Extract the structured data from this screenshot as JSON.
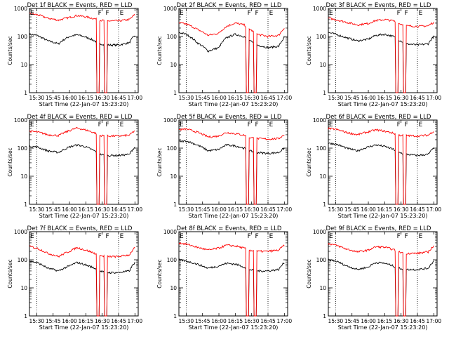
{
  "figure": {
    "ylabel": "Counts/sec",
    "xlabel": "Start Time (22-Jan-07 15:23:20)",
    "colors": {
      "events": "#000000",
      "lld": "#ff0000",
      "frame": "#000000"
    }
  },
  "chart_data": [
    {
      "type": "line",
      "title": "Det 1f BLACK = Events, RED = LLD",
      "xlabel": "Start Time (22-Jan-07 15:23:20)",
      "ylabel": "Counts/sec",
      "xticks": [
        "15:30",
        "15:45",
        "16:00",
        "16:15",
        "16:30",
        "16:45",
        "17:00"
      ],
      "yticks": [
        "1",
        "10",
        "100",
        "1000"
      ],
      "ylim": [
        1,
        1000
      ],
      "yscale": "log",
      "markers": [
        "F",
        "F",
        "E"
      ],
      "series": [
        {
          "key": "events",
          "x": [
            "15:23",
            "15:30",
            "15:40",
            "15:50",
            "16:00",
            "16:07",
            "16:15",
            "16:23",
            "16:28",
            "16:35",
            "16:45",
            "16:55",
            "17:00"
          ],
          "values": [
            120,
            110,
            70,
            55,
            100,
            115,
            95,
            70,
            55,
            50,
            50,
            60,
            110
          ]
        },
        {
          "key": "lld",
          "x": [
            "15:23",
            "15:30",
            "15:40",
            "15:50",
            "16:00",
            "16:07",
            "16:15",
            "16:23",
            "16:28",
            "16:35",
            "16:45",
            "16:55",
            "17:00"
          ],
          "values": [
            650,
            600,
            450,
            380,
            480,
            560,
            500,
            430,
            380,
            360,
            360,
            400,
            600
          ]
        }
      ]
    },
    {
      "type": "line",
      "title": "Det 2f BLACK = Events, RED = LLD",
      "xlabel": "Start Time (22-Jan-07 15:23:20)",
      "ylabel": "Counts/sec",
      "xticks": [
        "15:30",
        "15:45",
        "16:00",
        "16:15",
        "16:30",
        "16:45",
        "17:00"
      ],
      "yticks": [
        "1",
        "10",
        "100",
        "1000"
      ],
      "ylim": [
        1,
        1000
      ],
      "yscale": "log",
      "markers": [
        "F",
        "F",
        "E"
      ],
      "series": [
        {
          "key": "events",
          "x": [
            "15:23",
            "15:30",
            "15:40",
            "15:50",
            "16:00",
            "16:07",
            "16:15",
            "16:23",
            "16:28",
            "16:35",
            "16:45",
            "16:55",
            "17:00"
          ],
          "values": [
            140,
            120,
            60,
            30,
            40,
            90,
            120,
            100,
            70,
            50,
            40,
            45,
            90
          ]
        },
        {
          "key": "lld",
          "x": [
            "15:23",
            "15:30",
            "15:40",
            "15:50",
            "16:00",
            "16:07",
            "16:15",
            "16:23",
            "16:28",
            "16:35",
            "16:45",
            "16:55",
            "17:00"
          ],
          "values": [
            300,
            280,
            180,
            110,
            130,
            230,
            300,
            260,
            180,
            120,
            100,
            110,
            200
          ]
        }
      ]
    },
    {
      "type": "line",
      "title": "Det 3f BLACK = Events, RED = LLD",
      "xlabel": "Start Time (22-Jan-07 15:23:20)",
      "ylabel": "Counts/sec",
      "xticks": [
        "15:30",
        "15:45",
        "16:00",
        "16:15",
        "16:30",
        "16:45",
        "17:00"
      ],
      "yticks": [
        "1",
        "10",
        "100",
        "1000"
      ],
      "ylim": [
        1,
        1000
      ],
      "yscale": "log",
      "markers": [
        "F",
        "F",
        "E"
      ],
      "series": [
        {
          "key": "events",
          "x": [
            "15:23",
            "15:30",
            "15:40",
            "15:50",
            "16:00",
            "16:07",
            "16:15",
            "16:23",
            "16:28",
            "16:35",
            "16:45",
            "16:55",
            "17:00"
          ],
          "values": [
            140,
            120,
            90,
            70,
            80,
            110,
            120,
            100,
            75,
            55,
            50,
            55,
            100
          ]
        },
        {
          "key": "lld",
          "x": [
            "15:23",
            "15:30",
            "15:40",
            "15:50",
            "16:00",
            "16:07",
            "16:15",
            "16:23",
            "16:28",
            "16:35",
            "16:45",
            "16:55",
            "17:00"
          ],
          "values": [
            450,
            400,
            320,
            260,
            290,
            370,
            400,
            360,
            290,
            240,
            230,
            240,
            320
          ]
        }
      ]
    },
    {
      "type": "line",
      "title": "Det 4f BLACK = Events, RED = LLD",
      "xlabel": "Start Time (22-Jan-07 15:23:20)",
      "ylabel": "Counts/sec",
      "xticks": [
        "15:30",
        "15:45",
        "16:00",
        "16:15",
        "16:30",
        "16:45",
        "17:00"
      ],
      "yticks": [
        "1",
        "10",
        "100",
        "1000"
      ],
      "ylim": [
        1,
        1000
      ],
      "yscale": "log",
      "markers": [
        "F",
        "F",
        "E"
      ],
      "series": [
        {
          "key": "events",
          "x": [
            "15:23",
            "15:30",
            "15:40",
            "15:50",
            "16:00",
            "16:07",
            "16:15",
            "16:23",
            "16:28",
            "16:35",
            "16:45",
            "16:55",
            "17:00"
          ],
          "values": [
            120,
            110,
            80,
            70,
            110,
            130,
            110,
            80,
            60,
            55,
            55,
            60,
            110
          ]
        },
        {
          "key": "lld",
          "x": [
            "15:23",
            "15:30",
            "15:40",
            "15:50",
            "16:00",
            "16:07",
            "16:15",
            "16:23",
            "16:28",
            "16:35",
            "16:45",
            "16:55",
            "17:00"
          ],
          "values": [
            400,
            380,
            300,
            280,
            420,
            520,
            440,
            350,
            280,
            270,
            270,
            290,
            420
          ]
        }
      ]
    },
    {
      "type": "line",
      "title": "Det 5f BLACK = Events, RED = LLD",
      "xlabel": "Start Time (22-Jan-07 15:23:20)",
      "ylabel": "Counts/sec",
      "xticks": [
        "15:30",
        "15:45",
        "16:00",
        "16:15",
        "16:30",
        "16:45",
        "17:00"
      ],
      "yticks": [
        "1",
        "10",
        "100",
        "1000"
      ],
      "ylim": [
        1,
        1000
      ],
      "yscale": "log",
      "markers": [
        "F",
        "F",
        "E"
      ],
      "series": [
        {
          "key": "events",
          "x": [
            "15:23",
            "15:30",
            "15:40",
            "15:50",
            "16:00",
            "16:07",
            "16:15",
            "16:23",
            "16:28",
            "16:35",
            "16:45",
            "16:55",
            "17:00"
          ],
          "values": [
            170,
            180,
            130,
            80,
            90,
            130,
            120,
            100,
            80,
            70,
            65,
            70,
            100
          ]
        },
        {
          "key": "lld",
          "x": [
            "15:23",
            "15:30",
            "15:40",
            "15:50",
            "16:00",
            "16:07",
            "16:15",
            "16:23",
            "16:28",
            "16:35",
            "16:45",
            "16:55",
            "17:00"
          ],
          "values": [
            450,
            480,
            370,
            250,
            270,
            360,
            330,
            290,
            240,
            220,
            210,
            220,
            300
          ]
        }
      ]
    },
    {
      "type": "line",
      "title": "Det 6f BLACK = Events, RED = LLD",
      "xlabel": "Start Time (22-Jan-07 15:23:20)",
      "ylabel": "Counts/sec",
      "xticks": [
        "15:30",
        "15:45",
        "16:00",
        "16:15",
        "16:30",
        "16:45",
        "17:00"
      ],
      "yticks": [
        "1",
        "10",
        "100",
        "1000"
      ],
      "ylim": [
        1,
        1000
      ],
      "yscale": "log",
      "markers": [
        "F",
        "F",
        "E"
      ],
      "series": [
        {
          "key": "events",
          "x": [
            "15:23",
            "15:30",
            "15:40",
            "15:50",
            "16:00",
            "16:07",
            "16:15",
            "16:23",
            "16:28",
            "16:35",
            "16:45",
            "16:55",
            "17:00"
          ],
          "values": [
            150,
            140,
            100,
            80,
            110,
            130,
            115,
            90,
            70,
            60,
            55,
            60,
            100
          ]
        },
        {
          "key": "lld",
          "x": [
            "15:23",
            "15:30",
            "15:40",
            "15:50",
            "16:00",
            "16:07",
            "16:15",
            "16:23",
            "16:28",
            "16:35",
            "16:45",
            "16:55",
            "17:00"
          ],
          "values": [
            500,
            470,
            360,
            300,
            380,
            450,
            400,
            340,
            290,
            280,
            270,
            290,
            400
          ]
        }
      ]
    },
    {
      "type": "line",
      "title": "Det 7f BLACK = Events, RED = LLD",
      "xlabel": "Start Time (22-Jan-07 15:23:20)",
      "ylabel": "Counts/sec",
      "xticks": [
        "15:30",
        "15:45",
        "16:00",
        "16:15",
        "16:30",
        "16:45",
        "17:00"
      ],
      "yticks": [
        "1",
        "10",
        "100",
        "1000"
      ],
      "ylim": [
        1,
        1000
      ],
      "yscale": "log",
      "markers": [
        "F",
        "F",
        "E"
      ],
      "series": [
        {
          "key": "events",
          "x": [
            "15:23",
            "15:30",
            "15:40",
            "15:50",
            "16:00",
            "16:07",
            "16:15",
            "16:23",
            "16:28",
            "16:35",
            "16:45",
            "16:55",
            "17:00"
          ],
          "values": [
            90,
            80,
            50,
            40,
            60,
            80,
            65,
            50,
            40,
            35,
            35,
            40,
            80
          ]
        },
        {
          "key": "lld",
          "x": [
            "15:23",
            "15:30",
            "15:40",
            "15:50",
            "16:00",
            "16:07",
            "16:15",
            "16:23",
            "16:28",
            "16:35",
            "16:45",
            "16:55",
            "17:00"
          ],
          "values": [
            300,
            260,
            170,
            130,
            200,
            270,
            220,
            170,
            140,
            130,
            130,
            150,
            270
          ]
        }
      ]
    },
    {
      "type": "line",
      "title": "Det 8f BLACK = Events, RED = LLD",
      "xlabel": "Start Time (22-Jan-07 15:23:20)",
      "ylabel": "Counts/sec",
      "xticks": [
        "15:30",
        "15:45",
        "16:00",
        "16:15",
        "16:30",
        "16:45",
        "17:00"
      ],
      "yticks": [
        "1",
        "10",
        "100",
        "1000"
      ],
      "ylim": [
        1,
        1000
      ],
      "yscale": "log",
      "markers": [
        "F",
        "F",
        "E"
      ],
      "series": [
        {
          "key": "events",
          "x": [
            "15:23",
            "15:30",
            "15:40",
            "15:50",
            "16:00",
            "16:07",
            "16:15",
            "16:23",
            "16:28",
            "16:35",
            "16:45",
            "16:55",
            "17:00"
          ],
          "values": [
            100,
            90,
            70,
            50,
            60,
            75,
            70,
            55,
            45,
            40,
            40,
            45,
            80
          ]
        },
        {
          "key": "lld",
          "x": [
            "15:23",
            "15:30",
            "15:40",
            "15:50",
            "16:00",
            "16:07",
            "16:15",
            "16:23",
            "16:28",
            "16:35",
            "16:45",
            "16:55",
            "17:00"
          ],
          "values": [
            400,
            360,
            280,
            220,
            260,
            330,
            310,
            260,
            220,
            200,
            200,
            220,
            330
          ]
        }
      ]
    },
    {
      "type": "line",
      "title": "Det 9f BLACK = Events, RED = LLD",
      "xlabel": "Start Time (22-Jan-07 15:23:20)",
      "ylabel": "Counts/sec",
      "xticks": [
        "15:30",
        "15:45",
        "16:00",
        "16:15",
        "16:30",
        "16:45",
        "17:00"
      ],
      "yticks": [
        "1",
        "10",
        "100",
        "1000"
      ],
      "ylim": [
        1,
        1000
      ],
      "yscale": "log",
      "markers": [
        "F",
        "F",
        "E"
      ],
      "series": [
        {
          "key": "events",
          "x": [
            "15:23",
            "15:30",
            "15:40",
            "15:50",
            "16:00",
            "16:07",
            "16:15",
            "16:23",
            "16:28",
            "16:35",
            "16:45",
            "16:55",
            "17:00"
          ],
          "values": [
            100,
            90,
            60,
            45,
            55,
            80,
            75,
            60,
            50,
            45,
            45,
            50,
            90
          ]
        },
        {
          "key": "lld",
          "x": [
            "15:23",
            "15:30",
            "15:40",
            "15:50",
            "16:00",
            "16:07",
            "16:15",
            "16:23",
            "16:28",
            "16:35",
            "16:45",
            "16:55",
            "17:00"
          ],
          "values": [
            380,
            330,
            240,
            190,
            220,
            290,
            280,
            230,
            190,
            170,
            170,
            190,
            310
          ]
        }
      ]
    }
  ]
}
